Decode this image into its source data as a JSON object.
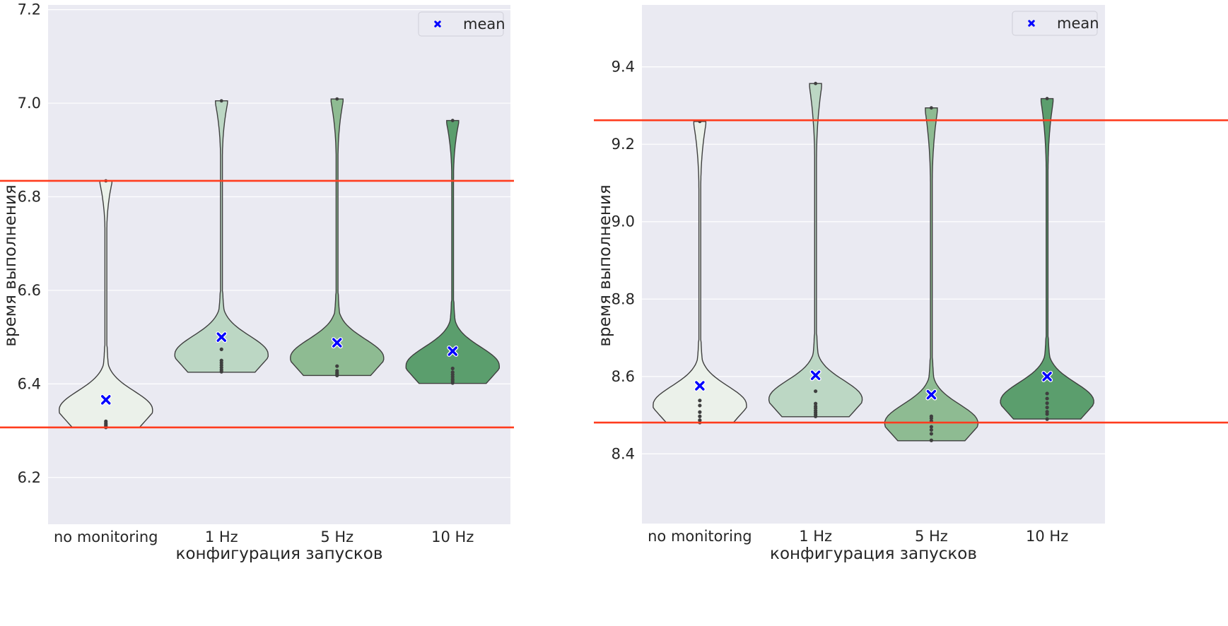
{
  "chart_data": [
    {
      "type": "violin",
      "xlabel": "конфигурация запусков",
      "ylabel": "время выполнения",
      "categories": [
        "no monitoring",
        "1 Hz",
        "5 Hz",
        "10 Hz"
      ],
      "ylim": [
        6.1,
        7.21
      ],
      "yticks": [
        6.2,
        6.4,
        6.6,
        6.8,
        7.0,
        7.2
      ],
      "ytick_labels": [
        "6.2",
        "6.4",
        "6.6",
        "6.8",
        "7.0",
        "7.2"
      ],
      "grid": true,
      "legend": {
        "position": "top-right",
        "label": "mean"
      },
      "reference_lines": [
        6.834,
        6.307
      ],
      "violins": [
        {
          "category": "no monitoring",
          "min": 6.307,
          "max": 6.834,
          "mode": 6.325,
          "fill": "#ebf1ea",
          "mean": 6.366,
          "points": [
            6.307,
            6.31,
            6.313,
            6.316,
            6.32
          ]
        },
        {
          "category": "1 Hz",
          "min": 6.425,
          "max": 7.005,
          "mode": 6.445,
          "fill": "#bcd7c4",
          "mean": 6.5,
          "points": [
            6.426,
            6.43,
            6.435,
            6.44,
            6.445,
            6.45,
            6.474
          ]
        },
        {
          "category": "5 Hz",
          "min": 6.418,
          "max": 7.009,
          "mode": 6.44,
          "fill": "#8ebb92",
          "mean": 6.488,
          "points": [
            6.418,
            6.421,
            6.424,
            6.428,
            6.438
          ]
        },
        {
          "category": "10 Hz",
          "min": 6.401,
          "max": 6.963,
          "mode": 6.425,
          "fill": "#5b9e6d",
          "mean": 6.47,
          "points": [
            6.402,
            6.406,
            6.41,
            6.415,
            6.42,
            6.425,
            6.433
          ]
        }
      ]
    },
    {
      "type": "violin",
      "xlabel": "конфигурация запусков",
      "ylabel": "время выполнения",
      "categories": [
        "no monitoring",
        "1 Hz",
        "5 Hz",
        "10 Hz"
      ],
      "ylim": [
        8.22,
        9.56
      ],
      "yticks": [
        8.4,
        8.6,
        8.8,
        9.0,
        9.2,
        9.4
      ],
      "ytick_labels": [
        "8.4",
        "8.6",
        "8.8",
        "9.0",
        "9.2",
        "9.4"
      ],
      "grid": true,
      "legend": {
        "position": "top-right",
        "label": "mean"
      },
      "reference_lines": [
        9.262,
        8.481
      ],
      "violins": [
        {
          "category": "no monitoring",
          "min": 8.481,
          "max": 9.259,
          "mode": 8.51,
          "fill": "#ebf1ea",
          "mean": 8.576,
          "points": [
            8.481,
            8.487,
            8.497,
            8.508,
            8.525,
            8.538
          ]
        },
        {
          "category": "1 Hz",
          "min": 8.496,
          "max": 9.357,
          "mode": 8.53,
          "fill": "#bcd7c4",
          "mean": 8.603,
          "points": [
            8.497,
            8.502,
            8.507,
            8.512,
            8.518,
            8.523,
            8.53,
            8.562
          ]
        },
        {
          "category": "5 Hz",
          "min": 8.434,
          "max": 9.294,
          "mode": 8.47,
          "fill": "#8ebb92",
          "mean": 8.553,
          "points": [
            8.435,
            8.452,
            8.462,
            8.47,
            8.485,
            8.492,
            8.497
          ]
        },
        {
          "category": "10 Hz",
          "min": 8.49,
          "max": 9.318,
          "mode": 8.525,
          "fill": "#5b9e6d",
          "mean": 8.6,
          "points": [
            8.49,
            8.503,
            8.509,
            8.52,
            8.531,
            8.543,
            8.556
          ]
        }
      ]
    }
  ]
}
